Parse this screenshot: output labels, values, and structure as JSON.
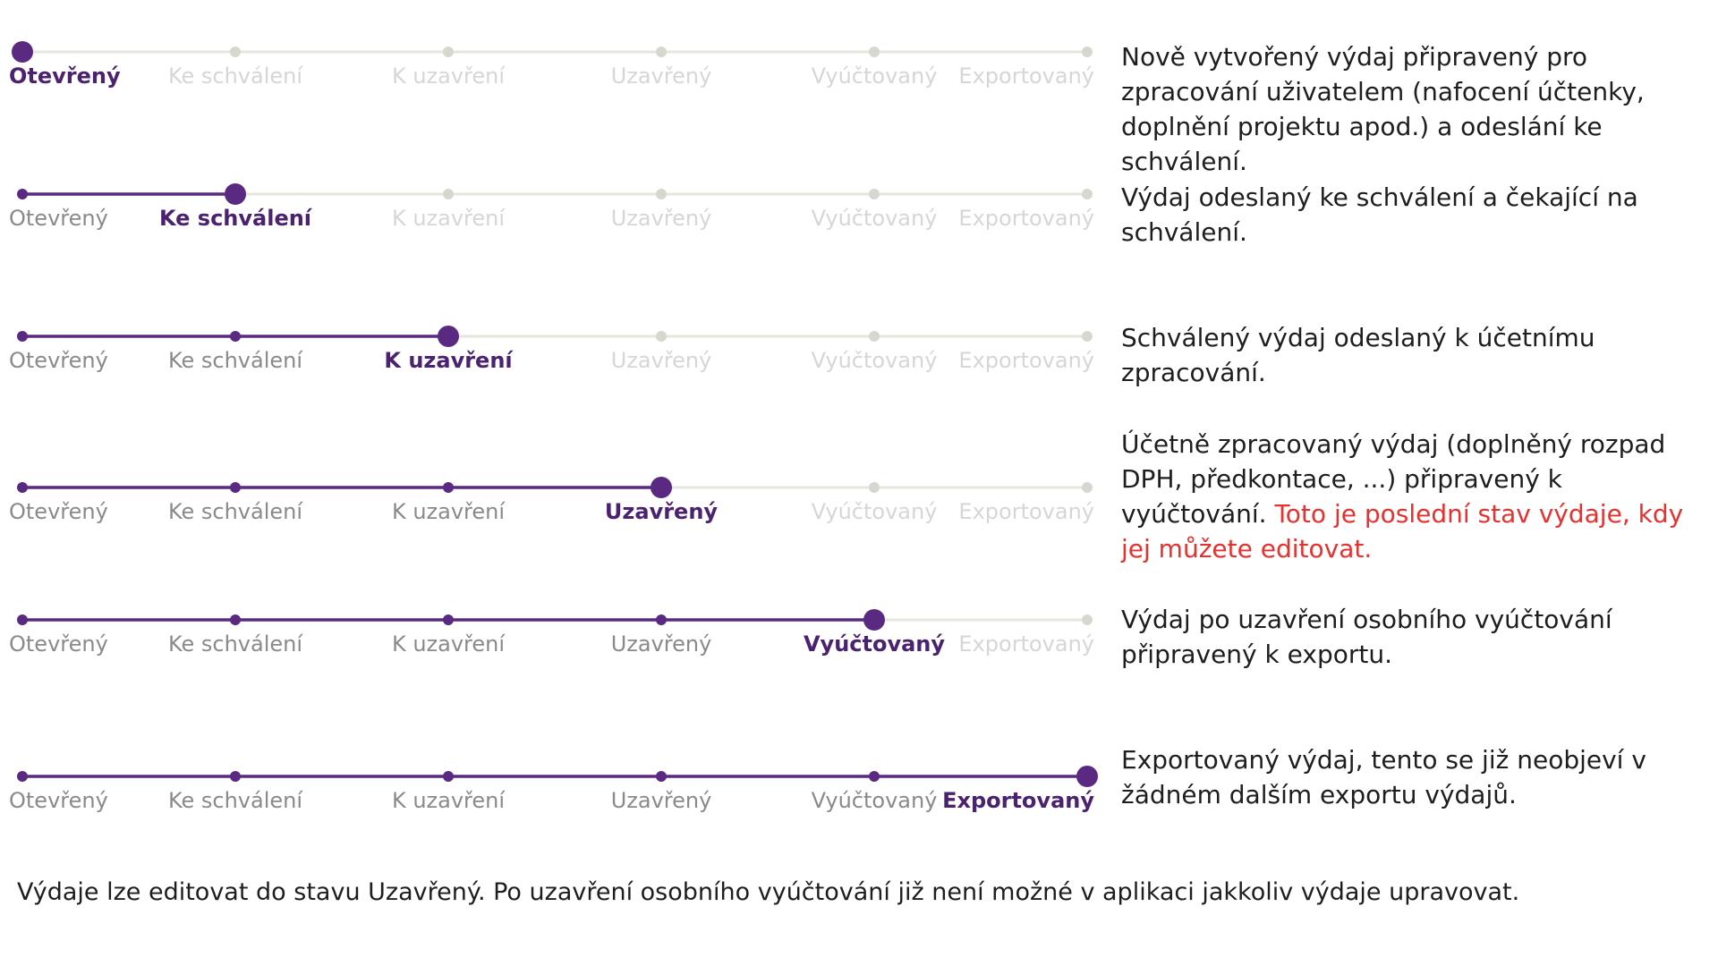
{
  "steps": [
    "Otevřený",
    "Ke schválení",
    "K uzavření",
    "Uzavřený",
    "Vyúčtovaný",
    "Exportovaný"
  ],
  "colors": {
    "active": "#5a2a82",
    "inactive_line": "#e6e6df",
    "inactive_dot": "#d7d7d0",
    "label_past": "#8a8a8a",
    "label_active": "#4a2270",
    "label_future": "#d6d6d6",
    "text": "#1e1e1e",
    "warning": "#e8312f"
  },
  "rows": [
    {
      "current_step": 1,
      "description": "Nově vytvořený výdaj připravený pro zpracování uživatelem (nafocení účtenky, doplnění projektu apod.) a odeslání ke schválení.",
      "warning": ""
    },
    {
      "current_step": 2,
      "description": "Výdaj odeslaný ke schválení a čekající na schválení.",
      "warning": ""
    },
    {
      "current_step": 3,
      "description": "Schválený výdaj odeslaný k účetnímu zpracování.",
      "warning": ""
    },
    {
      "current_step": 4,
      "description": "Účetně zpracovaný výdaj (doplněný rozpad DPH, předkontace, ...) připravený k vyúčtování.",
      "warning": "Toto je poslední stav výdaje, kdy jej můžete editovat."
    },
    {
      "current_step": 5,
      "description": "Výdaj po uzavření osobního vyúčtování připravený k exportu.",
      "warning": ""
    },
    {
      "current_step": 6,
      "description": "Exportovaný výdaj, tento se již neobjeví v žádném dalším exportu výdajů.",
      "warning": ""
    }
  ],
  "footer_note": "Výdaje lze editovat do stavu Uzavřený. Po uzavření osobního vyúčtování již není možné v aplikaci jakkoliv výdaje upravovat."
}
